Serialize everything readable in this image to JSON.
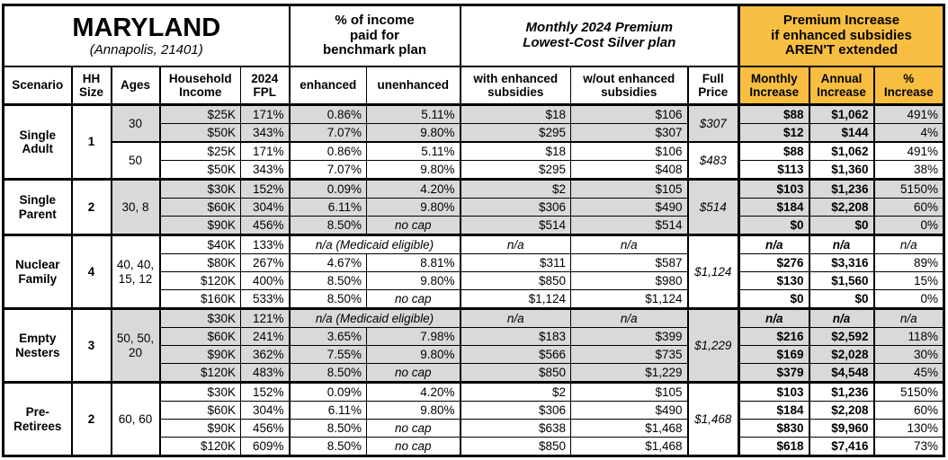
{
  "title": {
    "state": "MARYLAND",
    "location": "(Annapolis, 21401)"
  },
  "group_headers": {
    "benchmark": "% of income\npaid for\nbenchmark plan",
    "premium": "Monthly 2024 Premium\nLowest-Cost Silver plan",
    "increase": "Premium Increase\nif enhanced subsidies\nAREN'T extended"
  },
  "column_headers": [
    "Scenario",
    "HH\nSize",
    "Ages",
    "Household\nIncome",
    "2024\nFPL",
    "enhanced",
    "unenhanced",
    "with enhanced\nsubsidies",
    "w/out enhanced\nsubsidies",
    "Full\nPrice",
    "Monthly\nIncrease",
    "Annual\nIncrease",
    "%\nIncrease"
  ],
  "colors": {
    "accent_orange": "#F7BE41",
    "row_shade": "#D9D9D9",
    "border": "#000000"
  },
  "sections": [
    {
      "scenario": "Single\nAdult",
      "hh_size": "1",
      "age_groups": [
        {
          "ages": "30",
          "shaded": true,
          "full_price": "$307",
          "rows": [
            {
              "income": "$25K",
              "fpl": "171%",
              "enhanced": "0.86%",
              "unenhanced": "5.11%",
              "with_sub": "$18",
              "wout_sub": "$106",
              "monthly": "$88",
              "annual": "$1,062",
              "pct": "491%"
            },
            {
              "income": "$50K",
              "fpl": "343%",
              "enhanced": "7.07%",
              "unenhanced": "9.80%",
              "with_sub": "$295",
              "wout_sub": "$307",
              "monthly": "$12",
              "annual": "$144",
              "pct": "4%"
            }
          ]
        },
        {
          "ages": "50",
          "shaded": false,
          "full_price": "$483",
          "rows": [
            {
              "income": "$25K",
              "fpl": "171%",
              "enhanced": "0.86%",
              "unenhanced": "5.11%",
              "with_sub": "$18",
              "wout_sub": "$106",
              "monthly": "$88",
              "annual": "$1,062",
              "pct": "491%"
            },
            {
              "income": "$50K",
              "fpl": "343%",
              "enhanced": "7.07%",
              "unenhanced": "9.80%",
              "with_sub": "$295",
              "wout_sub": "$408",
              "monthly": "$113",
              "annual": "$1,360",
              "pct": "38%"
            }
          ]
        }
      ]
    },
    {
      "scenario": "Single\nParent",
      "hh_size": "2",
      "age_groups": [
        {
          "ages": "30, 8",
          "shaded": true,
          "full_price": "$514",
          "rows": [
            {
              "income": "$30K",
              "fpl": "152%",
              "enhanced": "0.09%",
              "unenhanced": "4.20%",
              "with_sub": "$2",
              "wout_sub": "$105",
              "monthly": "$103",
              "annual": "$1,236",
              "pct": "5150%"
            },
            {
              "income": "$60K",
              "fpl": "304%",
              "enhanced": "6.11%",
              "unenhanced": "9.80%",
              "with_sub": "$306",
              "wout_sub": "$490",
              "monthly": "$184",
              "annual": "$2,208",
              "pct": "60%"
            },
            {
              "income": "$90K",
              "fpl": "456%",
              "enhanced": "8.50%",
              "unenhanced": "no cap",
              "with_sub": "$514",
              "wout_sub": "$514",
              "monthly": "$0",
              "annual": "$0",
              "pct": "0%"
            }
          ]
        }
      ]
    },
    {
      "scenario": "Nuclear\nFamily",
      "hh_size": "4",
      "age_groups": [
        {
          "ages": "40, 40,\n15, 12",
          "shaded": false,
          "full_price": "$1,124",
          "rows": [
            {
              "income": "$40K",
              "fpl": "133%",
              "enhanced": "n/a (Medicaid eligible)",
              "unenhanced": "",
              "with_sub": "n/a",
              "wout_sub": "n/a",
              "monthly": "n/a",
              "annual": "n/a",
              "pct": "n/a"
            },
            {
              "income": "$80K",
              "fpl": "267%",
              "enhanced": "4.67%",
              "unenhanced": "8.81%",
              "with_sub": "$311",
              "wout_sub": "$587",
              "monthly": "$276",
              "annual": "$3,316",
              "pct": "89%"
            },
            {
              "income": "$120K",
              "fpl": "400%",
              "enhanced": "8.50%",
              "unenhanced": "9.80%",
              "with_sub": "$850",
              "wout_sub": "$980",
              "monthly": "$130",
              "annual": "$1,560",
              "pct": "15%"
            },
            {
              "income": "$160K",
              "fpl": "533%",
              "enhanced": "8.50%",
              "unenhanced": "no cap",
              "with_sub": "$1,124",
              "wout_sub": "$1,124",
              "monthly": "$0",
              "annual": "$0",
              "pct": "0%"
            }
          ]
        }
      ]
    },
    {
      "scenario": "Empty\nNesters",
      "hh_size": "3",
      "age_groups": [
        {
          "ages": "50, 50,\n20",
          "shaded": true,
          "full_price": "$1,229",
          "rows": [
            {
              "income": "$30K",
              "fpl": "121%",
              "enhanced": "n/a (Medicaid eligible)",
              "unenhanced": "",
              "with_sub": "n/a",
              "wout_sub": "n/a",
              "monthly": "n/a",
              "annual": "n/a",
              "pct": "n/a"
            },
            {
              "income": "$60K",
              "fpl": "241%",
              "enhanced": "3.65%",
              "unenhanced": "7.98%",
              "with_sub": "$183",
              "wout_sub": "$399",
              "monthly": "$216",
              "annual": "$2,592",
              "pct": "118%"
            },
            {
              "income": "$90K",
              "fpl": "362%",
              "enhanced": "7.55%",
              "unenhanced": "9.80%",
              "with_sub": "$566",
              "wout_sub": "$735",
              "monthly": "$169",
              "annual": "$2,028",
              "pct": "30%"
            },
            {
              "income": "$120K",
              "fpl": "483%",
              "enhanced": "8.50%",
              "unenhanced": "no cap",
              "with_sub": "$850",
              "wout_sub": "$1,229",
              "monthly": "$379",
              "annual": "$4,548",
              "pct": "45%"
            }
          ]
        }
      ]
    },
    {
      "scenario": "Pre-\nRetirees",
      "hh_size": "2",
      "age_groups": [
        {
          "ages": "60, 60",
          "shaded": false,
          "full_price": "$1,468",
          "rows": [
            {
              "income": "$30K",
              "fpl": "152%",
              "enhanced": "0.09%",
              "unenhanced": "4.20%",
              "with_sub": "$2",
              "wout_sub": "$105",
              "monthly": "$103",
              "annual": "$1,236",
              "pct": "5150%"
            },
            {
              "income": "$60K",
              "fpl": "304%",
              "enhanced": "6.11%",
              "unenhanced": "9.80%",
              "with_sub": "$306",
              "wout_sub": "$490",
              "monthly": "$184",
              "annual": "$2,208",
              "pct": "60%"
            },
            {
              "income": "$90K",
              "fpl": "456%",
              "enhanced": "8.50%",
              "unenhanced": "no cap",
              "with_sub": "$638",
              "wout_sub": "$1,468",
              "monthly": "$830",
              "annual": "$9,960",
              "pct": "130%"
            },
            {
              "income": "$120K",
              "fpl": "609%",
              "enhanced": "8.50%",
              "unenhanced": "no cap",
              "with_sub": "$850",
              "wout_sub": "$1,468",
              "monthly": "$618",
              "annual": "$7,416",
              "pct": "73%"
            }
          ]
        }
      ]
    }
  ]
}
